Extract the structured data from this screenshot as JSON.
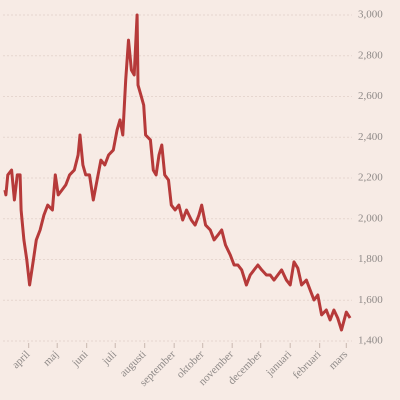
{
  "chart_data": {
    "type": "line",
    "x": [
      2,
      3,
      5,
      9,
      12,
      15,
      18,
      19,
      22,
      25,
      28,
      32,
      35,
      39,
      43,
      47,
      52,
      55,
      58,
      62,
      66,
      70,
      75,
      79,
      81,
      84,
      87,
      91,
      95,
      99,
      103,
      107,
      111,
      116,
      120,
      123,
      126,
      129,
      132,
      135,
      138,
      141,
      142,
      145,
      148,
      150,
      155,
      158,
      161,
      164,
      167,
      170,
      174,
      177,
      181,
      185,
      189,
      193,
      198,
      202,
      206,
      209,
      213,
      218,
      222,
      226,
      230,
      234,
      239,
      243,
      247,
      251,
      256,
      260,
      264,
      268,
      272,
      277,
      281,
      285,
      289,
      293,
      298,
      302,
      306,
      310,
      314,
      319,
      323,
      327,
      331,
      335,
      340,
      344,
      348,
      352,
      356,
      361,
      365
    ],
    "series": [
      {
        "color": "#b63a3a",
        "values": [
          2141,
          2117,
          2215,
          2239,
          2092,
          2215,
          2215,
          2043,
          1896,
          1798,
          1675,
          1798,
          1896,
          1945,
          2018,
          2067,
          2043,
          2215,
          2117,
          2141,
          2166,
          2215,
          2239,
          2313,
          2411,
          2264,
          2215,
          2215,
          2092,
          2190,
          2288,
          2264,
          2313,
          2337,
          2436,
          2485,
          2411,
          2681,
          2877,
          2730,
          2706,
          3000,
          2656,
          2607,
          2558,
          2411,
          2387,
          2239,
          2215,
          2313,
          2362,
          2215,
          2190,
          2067,
          2043,
          2067,
          1994,
          2043,
          1994,
          1969,
          2018,
          2067,
          1969,
          1945,
          1896,
          1920,
          1945,
          1871,
          1822,
          1773,
          1773,
          1749,
          1675,
          1724,
          1749,
          1773,
          1749,
          1724,
          1724,
          1699,
          1724,
          1749,
          1699,
          1675,
          1788,
          1758,
          1675,
          1699,
          1650,
          1601,
          1626,
          1528,
          1552,
          1503,
          1552,
          1513,
          1454,
          1542,
          1513
        ]
      }
    ],
    "xlim": [
      0,
      367
    ],
    "xticks": [
      {
        "value": 27,
        "label": "april"
      },
      {
        "value": 57,
        "label": "maj"
      },
      {
        "value": 88,
        "label": "juni"
      },
      {
        "value": 118,
        "label": "juli"
      },
      {
        "value": 149,
        "label": "augusti"
      },
      {
        "value": 180,
        "label": "september"
      },
      {
        "value": 210,
        "label": "oktober"
      },
      {
        "value": 241,
        "label": "november"
      },
      {
        "value": 271,
        "label": "december"
      },
      {
        "value": 302,
        "label": "januari"
      },
      {
        "value": 333,
        "label": "februari"
      },
      {
        "value": 361,
        "label": "mars"
      }
    ],
    "ylim": [
      1400,
      3000
    ],
    "yticks": [
      {
        "value": 1400,
        "label": "1,400"
      },
      {
        "value": 1600,
        "label": "1,600"
      },
      {
        "value": 1800,
        "label": "1,800"
      },
      {
        "value": 2000,
        "label": "2,000"
      },
      {
        "value": 2200,
        "label": "2,200"
      },
      {
        "value": 2400,
        "label": "2,400"
      },
      {
        "value": 2600,
        "label": "2,600"
      },
      {
        "value": 2800,
        "label": "2,800"
      },
      {
        "value": 3000,
        "label": "3,000"
      }
    ],
    "grid": true
  }
}
